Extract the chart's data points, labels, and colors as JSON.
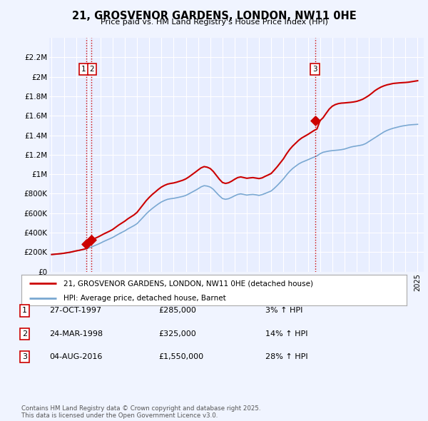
{
  "title": "21, GROSVENOR GARDENS, LONDON, NW11 0HE",
  "subtitle": "Price paid vs. HM Land Registry's House Price Index (HPI)",
  "background_color": "#f0f4ff",
  "plot_bg_color": "#e8eeff",
  "ylim": [
    0,
    2400000
  ],
  "yticks": [
    0,
    200000,
    400000,
    600000,
    800000,
    1000000,
    1200000,
    1400000,
    1600000,
    1800000,
    2000000,
    2200000
  ],
  "ytick_labels": [
    "£0",
    "£200K",
    "£400K",
    "£600K",
    "£800K",
    "£1M",
    "£1.2M",
    "£1.4M",
    "£1.6M",
    "£1.8M",
    "£2M",
    "£2.2M"
  ],
  "xlim_start": 1994.8,
  "xlim_end": 2025.5,
  "sale_dates": [
    1997.82,
    1998.23,
    2016.59
  ],
  "sale_prices": [
    285000,
    325000,
    1550000
  ],
  "sale_labels": [
    "1",
    "2",
    "3"
  ],
  "vline_color": "#cc0000",
  "house_line_color": "#cc0000",
  "hpi_line_color": "#7aa8d2",
  "legend_label_house": "21, GROSVENOR GARDENS, LONDON, NW11 0HE (detached house)",
  "legend_label_hpi": "HPI: Average price, detached house, Barnet",
  "table_data": [
    [
      "1",
      "27-OCT-1997",
      "£285,000",
      "3% ↑ HPI"
    ],
    [
      "2",
      "24-MAR-1998",
      "£325,000",
      "14% ↑ HPI"
    ],
    [
      "3",
      "04-AUG-2016",
      "£1,550,000",
      "28% ↑ HPI"
    ]
  ],
  "footer_text": "Contains HM Land Registry data © Crown copyright and database right 2025.\nThis data is licensed under the Open Government Licence v3.0.",
  "data_x": [
    1995.0,
    1995.25,
    1995.5,
    1995.75,
    1996.0,
    1996.25,
    1996.5,
    1996.75,
    1997.0,
    1997.25,
    1997.5,
    1997.75,
    1998.0,
    1998.25,
    1998.5,
    1998.75,
    1999.0,
    1999.25,
    1999.5,
    1999.75,
    2000.0,
    2000.25,
    2000.5,
    2000.75,
    2001.0,
    2001.25,
    2001.5,
    2001.75,
    2002.0,
    2002.25,
    2002.5,
    2002.75,
    2003.0,
    2003.25,
    2003.5,
    2003.75,
    2004.0,
    2004.25,
    2004.5,
    2004.75,
    2005.0,
    2005.25,
    2005.5,
    2005.75,
    2006.0,
    2006.25,
    2006.5,
    2006.75,
    2007.0,
    2007.25,
    2007.5,
    2007.75,
    2008.0,
    2008.25,
    2008.5,
    2008.75,
    2009.0,
    2009.25,
    2009.5,
    2009.75,
    2010.0,
    2010.25,
    2010.5,
    2010.75,
    2011.0,
    2011.25,
    2011.5,
    2011.75,
    2012.0,
    2012.25,
    2012.5,
    2012.75,
    2013.0,
    2013.25,
    2013.5,
    2013.75,
    2014.0,
    2014.25,
    2014.5,
    2014.75,
    2015.0,
    2015.25,
    2015.5,
    2015.75,
    2016.0,
    2016.25,
    2016.5,
    2016.75,
    2017.0,
    2017.25,
    2017.5,
    2017.75,
    2018.0,
    2018.25,
    2018.5,
    2018.75,
    2019.0,
    2019.25,
    2019.5,
    2019.75,
    2020.0,
    2020.25,
    2020.5,
    2020.75,
    2021.0,
    2021.25,
    2021.5,
    2021.75,
    2022.0,
    2022.25,
    2022.5,
    2022.75,
    2023.0,
    2023.25,
    2023.5,
    2023.75,
    2024.0,
    2024.25,
    2024.5,
    2024.75,
    2025.0
  ],
  "hpi_data_y": [
    175000,
    178000,
    181000,
    184000,
    188000,
    193000,
    198000,
    205000,
    212000,
    218000,
    225000,
    232000,
    240000,
    252000,
    265000,
    278000,
    292000,
    308000,
    322000,
    336000,
    350000,
    368000,
    386000,
    402000,
    418000,
    438000,
    455000,
    472000,
    492000,
    525000,
    558000,
    592000,
    622000,
    648000,
    672000,
    695000,
    715000,
    730000,
    742000,
    748000,
    752000,
    758000,
    765000,
    772000,
    782000,
    798000,
    815000,
    832000,
    850000,
    870000,
    882000,
    878000,
    868000,
    845000,
    810000,
    778000,
    750000,
    742000,
    748000,
    762000,
    778000,
    792000,
    798000,
    792000,
    785000,
    790000,
    792000,
    788000,
    782000,
    790000,
    802000,
    815000,
    828000,
    855000,
    885000,
    918000,
    952000,
    992000,
    1028000,
    1058000,
    1082000,
    1105000,
    1122000,
    1135000,
    1148000,
    1162000,
    1175000,
    1188000,
    1210000,
    1225000,
    1232000,
    1238000,
    1242000,
    1245000,
    1248000,
    1252000,
    1258000,
    1268000,
    1278000,
    1285000,
    1290000,
    1295000,
    1302000,
    1315000,
    1335000,
    1355000,
    1375000,
    1395000,
    1415000,
    1435000,
    1450000,
    1462000,
    1472000,
    1480000,
    1488000,
    1495000,
    1500000,
    1505000,
    1508000,
    1510000,
    1512000
  ],
  "house_data_y": [
    175000,
    178000,
    181000,
    184000,
    188000,
    193000,
    198000,
    205000,
    212000,
    218000,
    225000,
    232000,
    285000,
    325000,
    338000,
    352000,
    368000,
    385000,
    400000,
    415000,
    432000,
    455000,
    478000,
    498000,
    518000,
    542000,
    562000,
    582000,
    608000,
    648000,
    688000,
    728000,
    762000,
    792000,
    818000,
    845000,
    868000,
    885000,
    898000,
    905000,
    910000,
    918000,
    928000,
    938000,
    952000,
    972000,
    995000,
    1018000,
    1042000,
    1065000,
    1078000,
    1072000,
    1058000,
    1028000,
    988000,
    948000,
    915000,
    905000,
    912000,
    928000,
    948000,
    965000,
    972000,
    965000,
    958000,
    962000,
    965000,
    960000,
    955000,
    962000,
    978000,
    992000,
    1008000,
    1042000,
    1078000,
    1118000,
    1158000,
    1208000,
    1252000,
    1288000,
    1318000,
    1348000,
    1372000,
    1390000,
    1408000,
    1428000,
    1448000,
    1465000,
    1550000,
    1580000,
    1625000,
    1668000,
    1698000,
    1715000,
    1725000,
    1730000,
    1732000,
    1735000,
    1738000,
    1742000,
    1748000,
    1758000,
    1770000,
    1788000,
    1808000,
    1832000,
    1858000,
    1878000,
    1895000,
    1908000,
    1918000,
    1925000,
    1932000,
    1935000,
    1938000,
    1940000,
    1942000,
    1945000,
    1950000,
    1955000,
    1960000
  ]
}
